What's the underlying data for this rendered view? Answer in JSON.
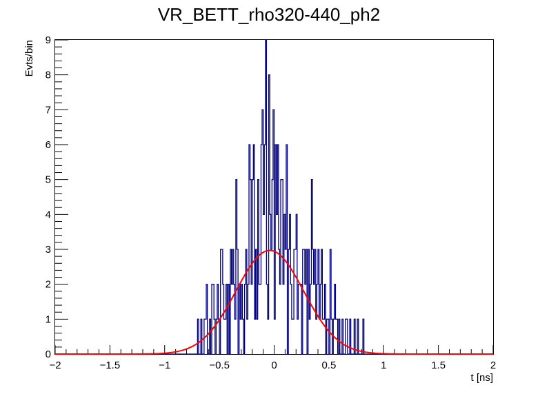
{
  "chart_data": {
    "type": "histogram",
    "title": "VR_BETT_rho320-440_ph2",
    "xlabel": "t [ns]",
    "ylabel": "Evts/bin",
    "xlim": [
      -2,
      2
    ],
    "ylim": [
      0,
      9
    ],
    "xticks": [
      "−2",
      "−1.5",
      "−1",
      "−0.5",
      "0",
      "0.5",
      "1",
      "1.5",
      "2"
    ],
    "yticks": [
      "0",
      "1",
      "2",
      "3",
      "4",
      "5",
      "6",
      "7",
      "8",
      "9"
    ],
    "grid": false,
    "legend": "none",
    "bin_width": 0.01,
    "bins_start": -0.7,
    "counts": [
      1,
      0,
      0,
      1,
      0,
      0,
      1,
      1,
      2,
      0,
      0,
      1,
      0,
      2,
      2,
      1,
      0,
      1,
      2,
      1,
      0,
      3,
      3,
      2,
      1,
      1,
      2,
      0,
      2,
      0,
      3,
      2,
      3,
      2,
      1,
      5,
      3,
      0,
      2,
      1,
      2,
      1,
      0,
      2,
      3,
      1,
      2,
      6,
      5,
      2,
      5,
      6,
      1,
      3,
      1,
      5,
      2,
      2,
      6,
      7,
      4,
      6,
      9,
      2,
      1,
      8,
      4,
      3,
      5,
      7,
      1,
      6,
      4,
      6,
      3,
      2,
      5,
      5,
      2,
      4,
      3,
      6,
      0,
      3,
      4,
      2,
      1,
      1,
      3,
      3,
      4,
      1,
      2,
      2,
      2,
      0,
      3,
      3,
      2,
      3,
      0,
      3,
      1,
      2,
      5,
      3,
      2,
      3,
      1,
      2,
      3,
      1,
      2,
      3,
      1,
      1,
      2,
      0,
      1,
      1,
      0,
      3,
      1,
      0,
      1,
      2,
      1,
      1,
      0,
      1,
      0,
      0,
      1,
      0,
      0,
      1,
      1,
      0,
      0,
      1,
      0,
      0,
      0,
      1,
      0,
      0,
      1,
      0,
      0,
      0,
      0,
      1,
      0,
      0,
      0,
      0,
      0,
      0,
      0
    ],
    "fit": {
      "function": "gaussian",
      "amplitude": 2.97,
      "mean": -0.04,
      "sigma": 0.31
    },
    "colors": {
      "histogram": "#000080",
      "fit": "#ff0000",
      "axes": "#000000"
    }
  }
}
